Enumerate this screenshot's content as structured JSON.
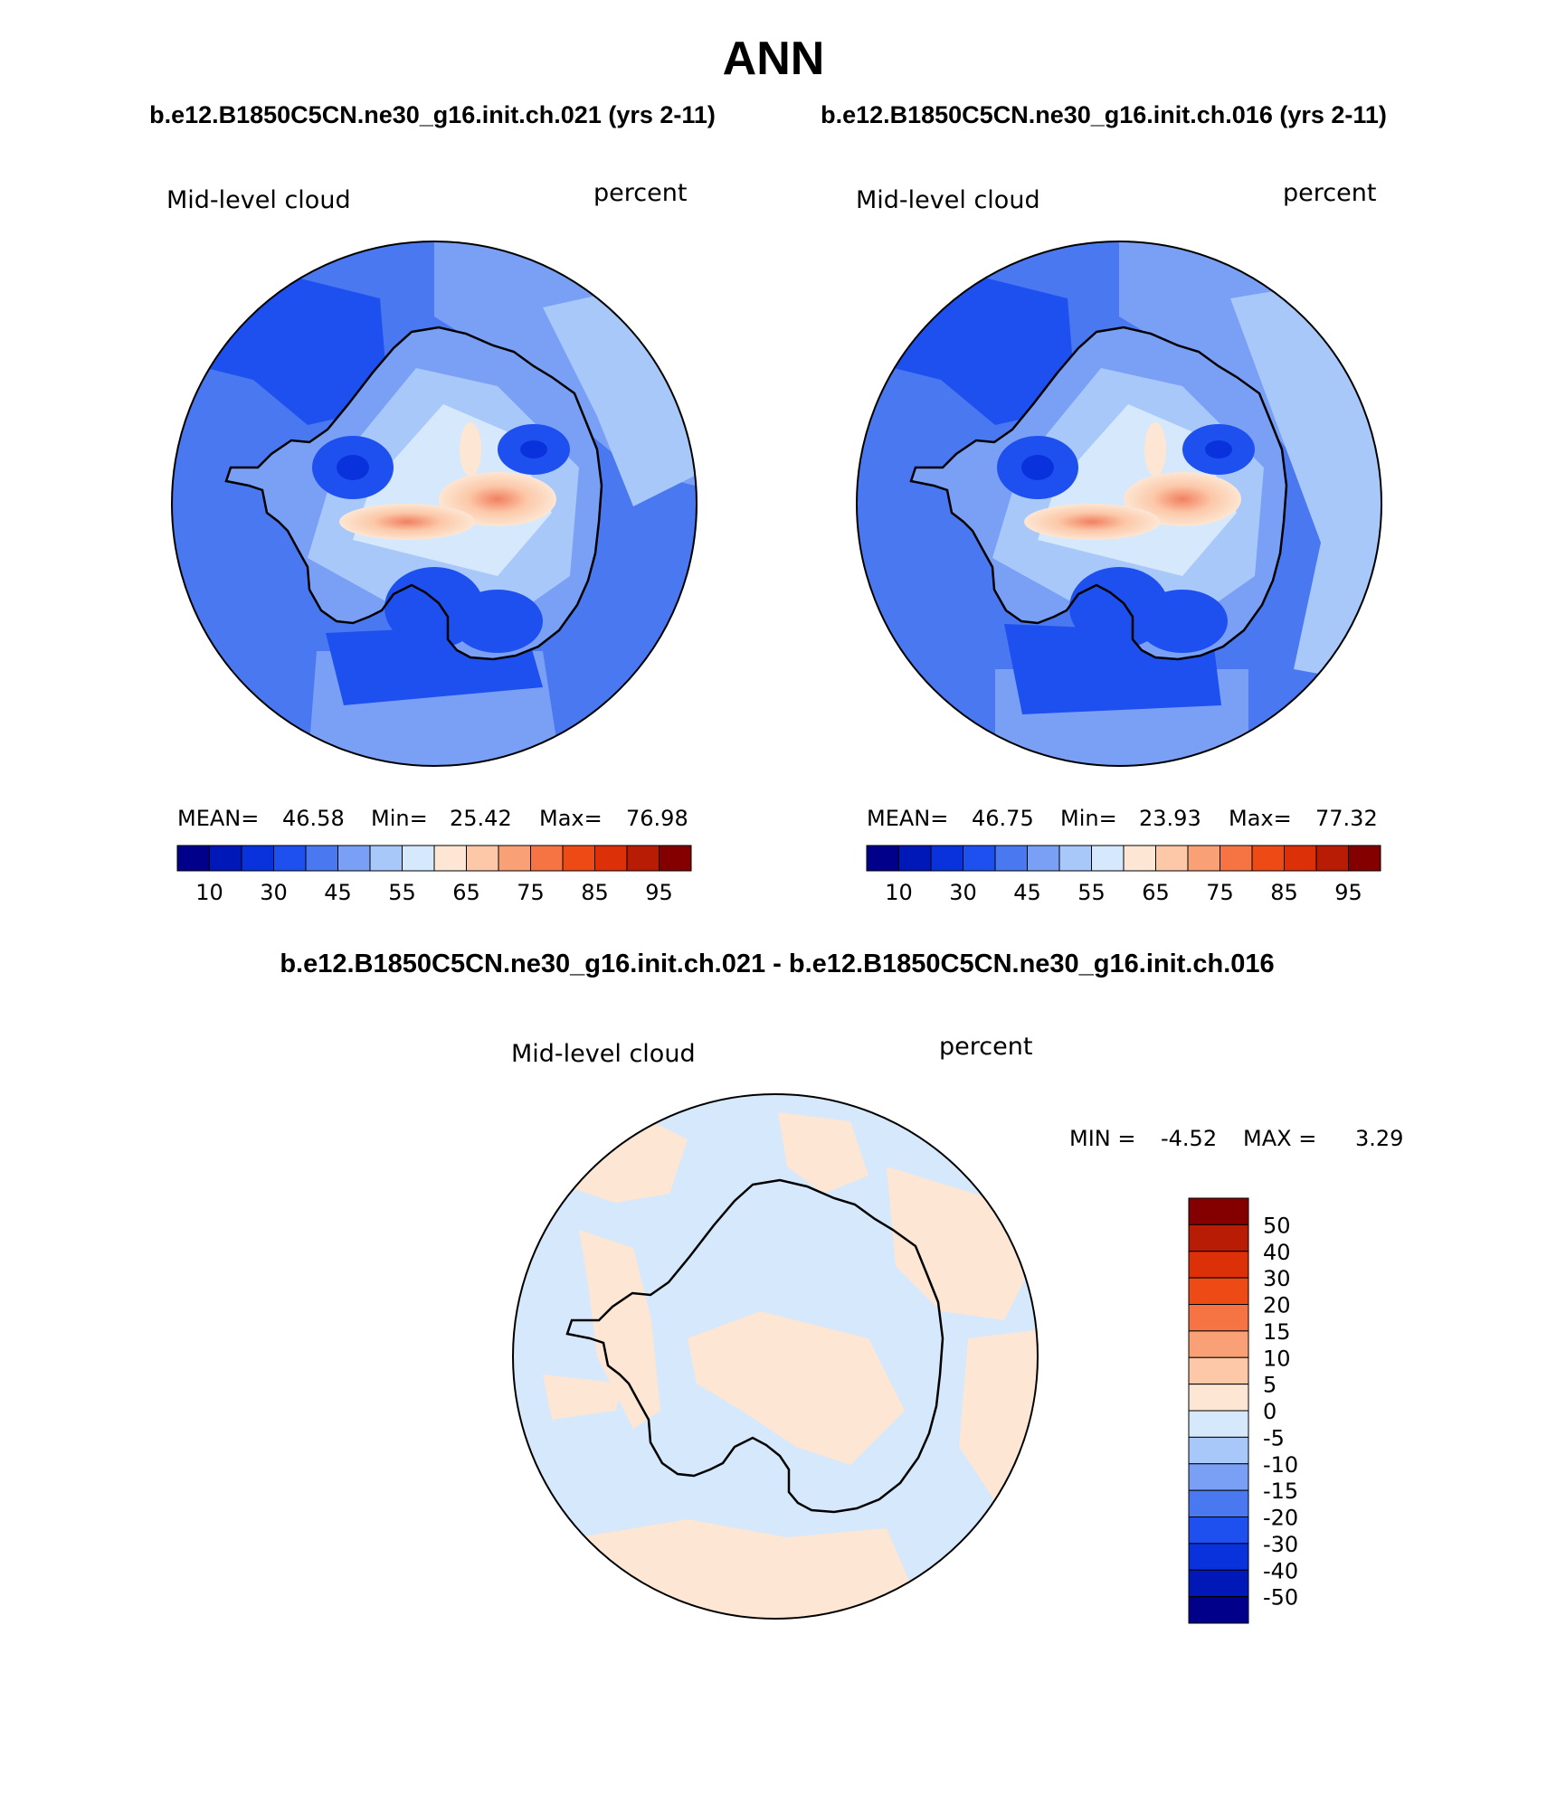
{
  "main_title": "ANN",
  "top_panels": [
    {
      "case_label": "b.e12.B1850C5CN.ne30_g16.init.ch.021 (yrs 2-11)",
      "variable": "Mid-level cloud",
      "units": "percent",
      "stats": {
        "mean_label": "MEAN=",
        "mean": "46.58",
        "min_label": "Min=",
        "min": "25.42",
        "max_label": "Max=",
        "max": "76.98"
      }
    },
    {
      "case_label": "b.e12.B1850C5CN.ne30_g16.init.ch.016 (yrs 2-11)",
      "variable": "Mid-level cloud",
      "units": "percent",
      "stats": {
        "mean_label": "MEAN=",
        "mean": "46.75",
        "min_label": "Min=",
        "min": "23.93",
        "max_label": "Max=",
        "max": "77.32"
      }
    }
  ],
  "abs_colorbar": {
    "colors": [
      "#00008b",
      "#0018b8",
      "#0a32dc",
      "#1e50f0",
      "#4a78f0",
      "#7aa0f5",
      "#a8c8fa",
      "#d6e8fc",
      "#fde6d3",
      "#fcc8a8",
      "#f9a076",
      "#f67444",
      "#ee4a16",
      "#dc3008",
      "#b81c04",
      "#840000"
    ],
    "labels": [
      "10",
      "30",
      "45",
      "55",
      "65",
      "75",
      "85",
      "95"
    ]
  },
  "diff_panel": {
    "title": "b.e12.B1850C5CN.ne30_g16.init.ch.021 - b.e12.B1850C5CN.ne30_g16.init.ch.016",
    "variable": "Mid-level cloud",
    "units": "percent",
    "stats": {
      "min_label": "MIN =",
      "min": "-4.52",
      "max_label": "MAX =",
      "max": "3.29"
    }
  },
  "diff_colorbar": {
    "colors": [
      "#840000",
      "#b81c04",
      "#dc3008",
      "#ee4a16",
      "#f67444",
      "#f9a076",
      "#fcc8a8",
      "#fde6d3",
      "#d6e8fc",
      "#a8c8fa",
      "#7aa0f5",
      "#4a78f0",
      "#1e50f0",
      "#0a32dc",
      "#0018b8",
      "#00008b"
    ],
    "labels": [
      "50",
      "40",
      "30",
      "20",
      "15",
      "10",
      "5",
      "0",
      "-5",
      "-10",
      "-15",
      "-20",
      "-30",
      "-40",
      "-50"
    ]
  }
}
